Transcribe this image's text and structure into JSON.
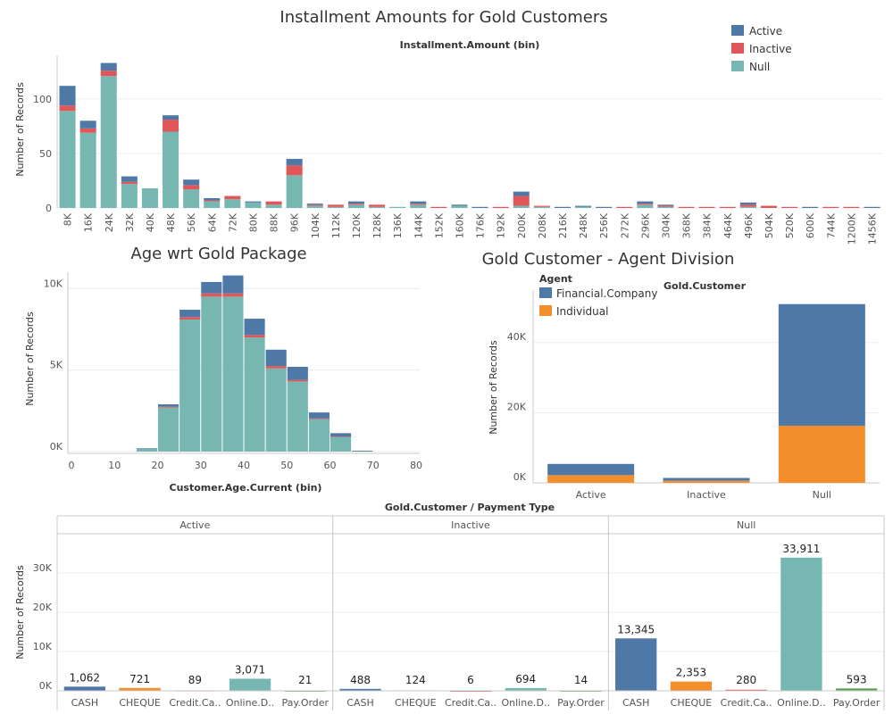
{
  "colors": {
    "active": "#4e79a7",
    "inactive": "#e15759",
    "null": "#76b7b2",
    "financial": "#4e79a7",
    "individual": "#f28e2b",
    "cash": "#4e79a7",
    "cheque": "#f28e2b",
    "credit": "#e15759",
    "online": "#76b7b2",
    "payorder": "#59a14f"
  },
  "chart_data": [
    {
      "id": "installment",
      "type": "bar",
      "stacked": true,
      "title": "Installment Amounts for Gold Customers",
      "subtitle": "Installment.Amount (bin)",
      "ylabel": "Number of Records",
      "ylim": [
        0,
        140
      ],
      "yticks": [
        0,
        50,
        100
      ],
      "legend": {
        "position": "top-right",
        "entries": [
          "Active",
          "Inactive",
          "Null"
        ]
      },
      "categories": [
        "8K",
        "16K",
        "24K",
        "32K",
        "40K",
        "48K",
        "56K",
        "64K",
        "72K",
        "80K",
        "88K",
        "96K",
        "104K",
        "112K",
        "120K",
        "128K",
        "136K",
        "144K",
        "152K",
        "160K",
        "176K",
        "192K",
        "200K",
        "208K",
        "216K",
        "248K",
        "256K",
        "272K",
        "296K",
        "304K",
        "368K",
        "384K",
        "464K",
        "496K",
        "504K",
        "520K",
        "600K",
        "744K",
        "1200K",
        "1456K"
      ],
      "series": [
        {
          "name": "Null",
          "values": [
            89,
            69,
            121,
            22,
            18,
            70,
            17,
            6,
            8,
            5,
            3,
            30,
            2,
            1,
            3,
            1,
            1,
            3,
            0,
            2,
            0,
            0,
            2,
            1,
            0,
            1,
            0,
            0,
            3,
            1,
            0,
            0,
            0,
            1,
            0,
            0,
            0,
            0,
            0,
            0
          ]
        },
        {
          "name": "Inactive",
          "values": [
            5,
            4,
            5,
            2,
            0,
            11,
            4,
            1,
            3,
            0,
            3,
            9,
            1,
            2,
            1,
            2,
            0,
            1,
            1,
            0,
            0,
            1,
            9,
            1,
            0,
            0,
            0,
            1,
            1,
            1,
            1,
            1,
            1,
            2,
            2,
            1,
            0,
            1,
            1,
            0
          ]
        },
        {
          "name": "Active",
          "values": [
            18,
            7,
            7,
            5,
            0,
            4,
            5,
            2,
            0,
            1,
            0,
            6,
            1,
            0,
            2,
            0,
            0,
            2,
            0,
            1,
            1,
            0,
            4,
            0,
            1,
            1,
            1,
            0,
            2,
            1,
            0,
            0,
            0,
            2,
            0,
            0,
            1,
            0,
            0,
            1
          ]
        }
      ]
    },
    {
      "id": "age",
      "type": "bar",
      "stacked": true,
      "title": "Age wrt Gold Package",
      "xlabel": "Customer.Age.Current (bin)",
      "ylabel": "Number of Records",
      "ylim": [
        0,
        11000
      ],
      "xlim": [
        0,
        80
      ],
      "xticks": [
        "0",
        "10",
        "20",
        "30",
        "40",
        "50",
        "60",
        "70",
        "80"
      ],
      "yticks": [
        "0K",
        "5K",
        "10K"
      ],
      "bin_width": 5,
      "bin_starts": [
        15,
        20,
        25,
        30,
        35,
        40,
        45,
        50,
        55,
        60,
        65
      ],
      "series": [
        {
          "name": "Null",
          "values": [
            150,
            2700,
            8100,
            9500,
            9500,
            7000,
            5100,
            4300,
            2000,
            900,
            0
          ]
        },
        {
          "name": "Inactive",
          "values": [
            0,
            50,
            150,
            200,
            200,
            150,
            150,
            100,
            50,
            30,
            0
          ]
        },
        {
          "name": "Active",
          "values": [
            50,
            150,
            450,
            700,
            1100,
            1000,
            1000,
            800,
            350,
            200,
            50
          ]
        }
      ]
    },
    {
      "id": "agent",
      "type": "bar",
      "stacked": true,
      "title": "Gold Customer - Agent Division",
      "subtitle": "Gold.Customer",
      "ylabel": "Number of Records",
      "ylim": [
        0,
        55000
      ],
      "yticks": [
        "0K",
        "20K",
        "40K"
      ],
      "legend": {
        "title": "Agent",
        "position": "top-left",
        "entries": [
          "Financial.Company",
          "Individual"
        ]
      },
      "categories": [
        "Active",
        "Inactive",
        "Null"
      ],
      "series": [
        {
          "name": "Individual",
          "values": [
            2200,
            600,
            16300
          ]
        },
        {
          "name": "Financial.Company",
          "values": [
            3200,
            800,
            34700
          ]
        }
      ]
    },
    {
      "id": "payment",
      "type": "bar",
      "title": "Gold.Customer / Payment Type",
      "ylabel": "Number of Records",
      "ylim": [
        0,
        40000
      ],
      "yticks": [
        "0K",
        "10K",
        "20K",
        "30K"
      ],
      "panels": [
        "Active",
        "Inactive",
        "Null"
      ],
      "categories": [
        "CASH",
        "CHEQUE",
        "Credit.Ca..",
        "Online.D..",
        "Pay.Order"
      ],
      "values": [
        [
          1062,
          721,
          89,
          3071,
          21
        ],
        [
          488,
          124,
          6,
          694,
          14
        ],
        [
          13345,
          2353,
          280,
          33911,
          593
        ]
      ],
      "labels": [
        [
          "1,062",
          "721",
          "89",
          "3,071",
          "21"
        ],
        [
          "488",
          "124",
          "6",
          "694",
          "14"
        ],
        [
          "13,345",
          "2,353",
          "280",
          "33,911",
          "593"
        ]
      ]
    }
  ]
}
